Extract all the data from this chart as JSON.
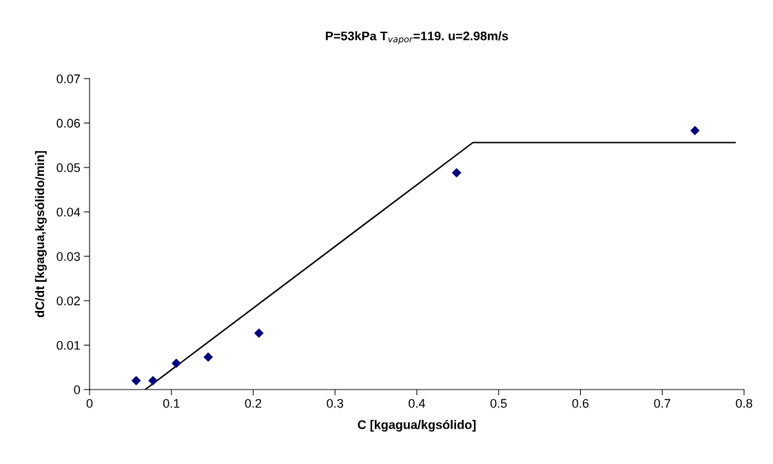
{
  "chart_data": {
    "type": "scatter",
    "title": "P=53kPa T$_{vapor}$=119. u=2.98m/s",
    "xlabel": "C [kgagua/kgsólido]",
    "ylabel": "dC/dt [kgagua,kgsólido/min]",
    "xlim": [
      0,
      0.8
    ],
    "xticks": [
      0,
      0.1,
      0.2,
      0.3,
      0.4,
      0.5,
      0.6,
      0.7,
      0.8
    ],
    "ylim": [
      0,
      0.07
    ],
    "yticks": [
      0,
      0.01,
      0.02,
      0.03,
      0.04,
      0.05,
      0.06,
      0.07
    ],
    "grid": false,
    "legend": false,
    "series": [
      {
        "color": "#000080",
        "marker": "diamond",
        "x": [
          0.057,
          0.0775,
          0.106,
          0.145,
          0.207,
          0.4486,
          0.74
        ],
        "values": [
          0.002,
          0.002,
          0.0059,
          0.0073,
          0.0127,
          0.0488,
          0.0583
        ]
      },
      {
        "type": "line",
        "color": "#000000",
        "marker": "none",
        "line_style": "solid",
        "x": [
          0.068,
          0.4686,
          0.789
        ],
        "values": [
          0,
          0.0556,
          0.0556
        ]
      }
    ]
  }
}
